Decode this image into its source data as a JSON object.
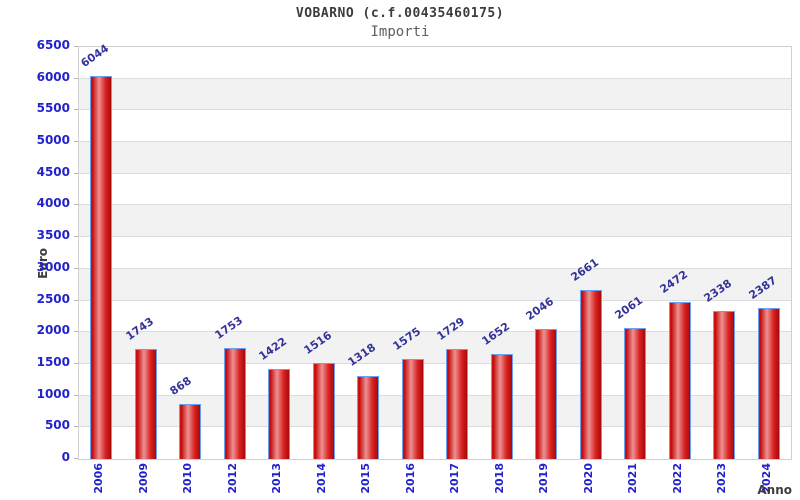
{
  "header": {
    "title": "VOBARNO (c.f.00435460175)",
    "subtitle": "Importi"
  },
  "chart_data": {
    "type": "bar",
    "title": "VOBARNO (c.f.00435460175)",
    "subtitle": "Importi",
    "xlabel": "Anno",
    "ylabel": "Euro",
    "categories": [
      "2006",
      "2009",
      "2010",
      "2012",
      "2013",
      "2014",
      "2015",
      "2016",
      "2017",
      "2018",
      "2019",
      "2020",
      "2021",
      "2022",
      "2023",
      "2024"
    ],
    "values": [
      6044,
      1743,
      868,
      1753,
      1422,
      1516,
      1318,
      1575,
      1729,
      1652,
      2046,
      2661,
      2061,
      2472,
      2338,
      2387
    ],
    "ylim": [
      0,
      6500
    ],
    "y_tick_step": 500,
    "y_ticks": [
      "0",
      "500",
      "1000",
      "1500",
      "2000",
      "2500",
      "3000",
      "3500",
      "4000",
      "4500",
      "5000",
      "5500",
      "6000",
      "6500"
    ],
    "grid": "horizontal-bands",
    "legend": "none",
    "colors": {
      "bar_fill_dark": "#c40808",
      "bar_fill_light": "#ec9292",
      "bar_border": "#6b9ff2",
      "band_alt": "#f2f2f2",
      "gridline": "#dcdcdc",
      "tick_label": "#2222cc",
      "value_label": "#333399",
      "axis_title": "#3c3c3c",
      "title_text": "#3c3c3c",
      "subtitle_text": "#606060"
    }
  }
}
